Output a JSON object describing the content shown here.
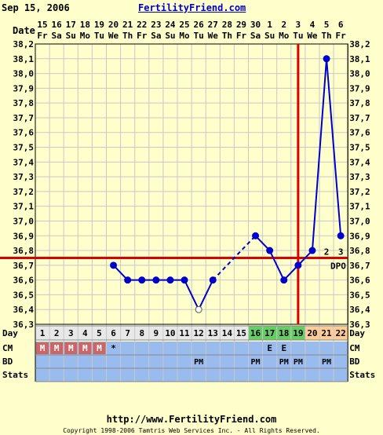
{
  "header": {
    "date": "Sep 15, 2006",
    "brand": "FertilityFriend.com"
  },
  "footer": {
    "url": "http://www.FertilityFriend.com",
    "copyright": "Copyright 1998-2006 Tamtris Web Services Inc. - All Rights Reserved."
  },
  "row_labels": {
    "date": "Date",
    "day": "Day",
    "cm": "CM",
    "bd": "BD",
    "stats": "Stats"
  },
  "colors": {
    "background": "#ffffcc",
    "grid": "#c8c8c8",
    "line": "#0000cc",
    "coverline": "#dd0000",
    "fertile_day": "#66cc66",
    "luteal_day": "#ffcc99",
    "row_blue": "#99bbee",
    "menses": "#cc6666"
  },
  "chart_data": {
    "type": "line",
    "title": "",
    "ylabel": "",
    "xlabel": "",
    "ylim": [
      36.3,
      38.2
    ],
    "ytick_step": 0.1,
    "y_ticks": [
      "38,2",
      "38,1",
      "38,0",
      "37,9",
      "37,8",
      "37,7",
      "37,6",
      "37,5",
      "37,4",
      "37,3",
      "37,2",
      "37,1",
      "37,0",
      "36,9",
      "36,8",
      "36,7",
      "36,6",
      "36,5",
      "36,4",
      "36,3"
    ],
    "dates": [
      "15",
      "16",
      "17",
      "18",
      "19",
      "20",
      "21",
      "22",
      "23",
      "24",
      "25",
      "26",
      "27",
      "28",
      "29",
      "30",
      "1",
      "2",
      "3",
      "4",
      "5",
      "6"
    ],
    "weekdays": [
      "Fr",
      "Sa",
      "Su",
      "Mo",
      "Tu",
      "We",
      "Th",
      "Fr",
      "Sa",
      "Su",
      "Mo",
      "Tu",
      "We",
      "Th",
      "Fr",
      "Sa",
      "Su",
      "Mo",
      "Tu",
      "We",
      "Th",
      "Fr"
    ],
    "cycle_days": [
      "1",
      "2",
      "3",
      "4",
      "5",
      "6",
      "7",
      "8",
      "9",
      "10",
      "11",
      "12",
      "13",
      "14",
      "15",
      "16",
      "17",
      "18",
      "19",
      "20",
      "21",
      "22"
    ],
    "temps": [
      null,
      null,
      null,
      null,
      null,
      36.7,
      36.6,
      36.6,
      36.6,
      36.6,
      36.6,
      36.4,
      36.6,
      null,
      null,
      36.9,
      36.8,
      36.6,
      36.7,
      36.8,
      38.1,
      36.9
    ],
    "open_points": [
      12
    ],
    "dashed_segments": [
      [
        13,
        16
      ]
    ],
    "coverline": 36.75,
    "ovulation_day": 18.5,
    "fertile_days": [
      16,
      17,
      18,
      19
    ],
    "luteal_days": [
      20,
      21,
      22
    ],
    "dpo_labels": [
      {
        "day": 21,
        "label": "2"
      },
      {
        "day": 22,
        "label": "3"
      }
    ],
    "dpo_text": "DPO",
    "cm": [
      "M",
      "M",
      "M",
      "M",
      "M",
      "*",
      "",
      "",
      "",
      "",
      "",
      "",
      "",
      "",
      "",
      "",
      "E",
      "E",
      "",
      "",
      "",
      ""
    ],
    "bd": [
      "",
      "",
      "",
      "",
      "",
      "",
      "",
      "",
      "",
      "",
      "",
      "PM",
      "",
      "",
      "",
      "PM",
      "",
      "PM",
      "PM",
      "",
      "PM",
      ""
    ]
  }
}
